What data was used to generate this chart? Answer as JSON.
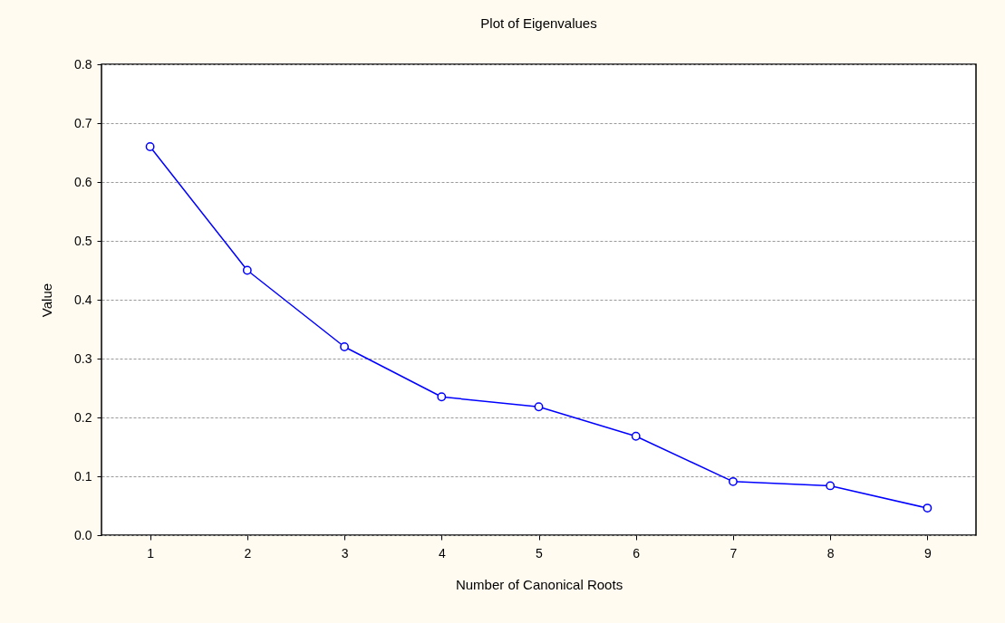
{
  "chart_data": {
    "type": "line",
    "title": "Plot of Eigenvalues",
    "xlabel": "Number of Canonical Roots",
    "ylabel": "Value",
    "x": [
      1,
      2,
      3,
      4,
      5,
      6,
      7,
      8,
      9
    ],
    "series": [
      {
        "color": "#0000ff",
        "values": [
          0.66,
          0.45,
          0.32,
          0.235,
          0.218,
          0.168,
          0.091,
          0.084,
          0.046
        ]
      }
    ],
    "xlim": [
      0.5,
      9.5
    ],
    "xticks": [
      1,
      2,
      3,
      4,
      5,
      6,
      7,
      8,
      9
    ],
    "ylim": [
      0,
      0.8
    ],
    "yticks": [
      {
        "value": 0,
        "label": "0.0"
      },
      0.1,
      0.2,
      0.3,
      0.4,
      0.5,
      0.6,
      0.7,
      0.8
    ],
    "grid": "y",
    "marker": "circle",
    "line_style": "solid"
  }
}
